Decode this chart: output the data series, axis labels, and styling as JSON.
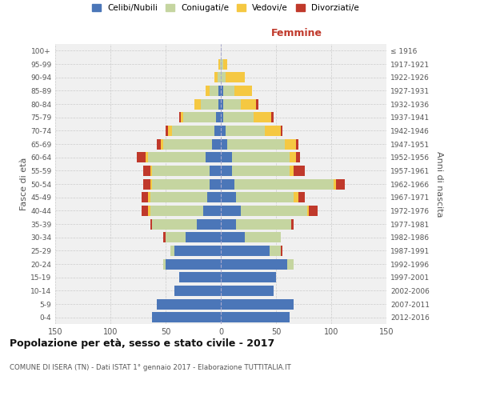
{
  "age_groups": [
    "0-4",
    "5-9",
    "10-14",
    "15-19",
    "20-24",
    "25-29",
    "30-34",
    "35-39",
    "40-44",
    "45-49",
    "50-54",
    "55-59",
    "60-64",
    "65-69",
    "70-74",
    "75-79",
    "80-84",
    "85-89",
    "90-94",
    "95-99",
    "100+"
  ],
  "birth_years": [
    "2012-2016",
    "2007-2011",
    "2002-2006",
    "1997-2001",
    "1992-1996",
    "1987-1991",
    "1982-1986",
    "1977-1981",
    "1972-1976",
    "1967-1971",
    "1962-1966",
    "1957-1961",
    "1952-1956",
    "1947-1951",
    "1942-1946",
    "1937-1941",
    "1932-1936",
    "1927-1931",
    "1922-1926",
    "1917-1921",
    "≤ 1916"
  ],
  "male": {
    "celibi": [
      62,
      58,
      42,
      38,
      50,
      42,
      32,
      22,
      16,
      12,
      10,
      10,
      14,
      8,
      6,
      4,
      2,
      2,
      0,
      0,
      0
    ],
    "coniugati": [
      0,
      0,
      0,
      0,
      2,
      4,
      18,
      40,
      48,
      52,
      52,
      52,
      52,
      44,
      38,
      30,
      16,
      8,
      3,
      1,
      0
    ],
    "vedovi": [
      0,
      0,
      0,
      0,
      0,
      0,
      0,
      0,
      2,
      2,
      2,
      2,
      2,
      2,
      4,
      2,
      6,
      4,
      3,
      1,
      0
    ],
    "divorziati": [
      0,
      0,
      0,
      0,
      0,
      0,
      2,
      2,
      6,
      6,
      6,
      6,
      8,
      4,
      2,
      2,
      0,
      0,
      0,
      0,
      0
    ]
  },
  "female": {
    "nubili": [
      62,
      66,
      48,
      50,
      60,
      44,
      22,
      14,
      18,
      14,
      12,
      10,
      10,
      6,
      4,
      2,
      2,
      2,
      0,
      0,
      0
    ],
    "coniugate": [
      0,
      0,
      0,
      0,
      6,
      10,
      32,
      50,
      60,
      52,
      90,
      52,
      52,
      52,
      36,
      28,
      16,
      10,
      4,
      2,
      0
    ],
    "vedove": [
      0,
      0,
      0,
      0,
      0,
      0,
      0,
      0,
      2,
      4,
      2,
      4,
      6,
      10,
      14,
      16,
      14,
      16,
      18,
      4,
      0
    ],
    "divorziate": [
      0,
      0,
      0,
      0,
      0,
      2,
      0,
      2,
      8,
      6,
      8,
      10,
      4,
      2,
      2,
      2,
      2,
      0,
      0,
      0,
      0
    ]
  },
  "colors": {
    "celibi_nubili": "#4B76B8",
    "coniugati": "#C5D5A0",
    "vedovi": "#F5C842",
    "divorziati": "#C0392B"
  },
  "xlim": 150,
  "title": "Popolazione per età, sesso e stato civile - 2017",
  "subtitle": "COMUNE DI ISERA (TN) - Dati ISTAT 1° gennaio 2017 - Elaborazione TUTTITALIA.IT",
  "ylabel_left": "Fasce di età",
  "ylabel_right": "Anni di nascita",
  "xlabel_right": "Femmine",
  "bg_color": "#f0f0f0",
  "grid_color": "#cccccc"
}
